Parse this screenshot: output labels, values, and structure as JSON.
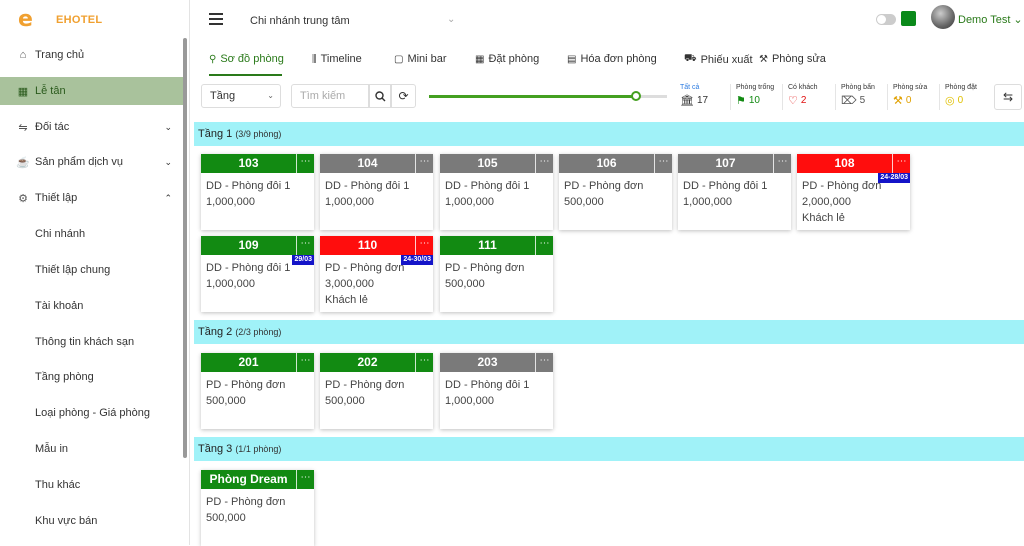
{
  "brand": {
    "name": "EHOTEL",
    "logo_glyph": "e",
    "accent": "#f0a030"
  },
  "menu": [
    {
      "label": "Trang chủ",
      "icon": "home-icon",
      "glyph": "⌂"
    },
    {
      "label": "Lễ tân",
      "icon": "grid-icon",
      "glyph": "▦",
      "active": true
    },
    {
      "label": "Đối tác",
      "icon": "swap-icon",
      "glyph": "⇋",
      "chevron": "⌄"
    },
    {
      "label": "Sản phẩm dịch vụ",
      "icon": "product-icon",
      "glyph": "☕",
      "chevron": "⌄"
    },
    {
      "label": "Thiết lập",
      "icon": "gear-icon",
      "glyph": "⚙",
      "chevron": "⌃"
    }
  ],
  "submenu": [
    "Chi nhánh",
    "Thiết lập chung",
    "Tài khoản",
    "Thông tin khách sạn",
    "Tầng phòng",
    "Loại phòng - Giá phòng",
    "Mẫu in",
    "Thu khác",
    "Khu vực bán"
  ],
  "topbar": {
    "branch": "Chi nhánh trung tâm",
    "branch_chevron": "⌄",
    "user": "Demo Test ⌄"
  },
  "tabs": [
    {
      "label": "Sơ đồ phòng",
      "icon": "diagram-icon",
      "glyph": "⚲",
      "active": true
    },
    {
      "label": "Timeline",
      "icon": "timeline-icon",
      "glyph": "⫼"
    },
    {
      "label": "Mini bar",
      "icon": "bag-icon",
      "glyph": "▢"
    },
    {
      "label": "Đặt phòng",
      "icon": "calendar-icon",
      "glyph": "▦"
    },
    {
      "label": "Hóa đơn phòng",
      "icon": "invoice-icon",
      "glyph": "▤"
    },
    {
      "label": "Phiếu xuất",
      "icon": "cart-icon",
      "glyph": "⛟"
    },
    {
      "label": "Phòng sửa",
      "icon": "hammer-icon",
      "glyph": "⚒"
    }
  ],
  "filters": {
    "floor_select": "Tầng",
    "floor_chevron": "⌄",
    "search_placeholder": "Tìm kiếm",
    "search_glyph": "⌕",
    "refresh_glyph": "⟳",
    "slider_value": 0.87,
    "swap_glyph": "⇆"
  },
  "stats": [
    {
      "label": "Tất cả",
      "value": "17",
      "glyph": "🏛",
      "color": "#333",
      "label_color": "#2a7ae0"
    },
    {
      "label": "Phòng trống",
      "value": "10",
      "glyph": "⚑",
      "color": "#128a12"
    },
    {
      "label": "Có khách",
      "value": "2",
      "glyph": "♡",
      "color": "#e01010"
    },
    {
      "label": "Phòng bẩn",
      "value": "5",
      "glyph": "⌦",
      "color": "#555"
    },
    {
      "label": "Phòng sửa",
      "value": "0",
      "glyph": "⚒",
      "color": "#e0a000"
    },
    {
      "label": "Phòng đặt",
      "value": "0",
      "glyph": "◎",
      "color": "#e0c000"
    }
  ],
  "floors": [
    {
      "name": "Tầng 1",
      "count": "(3/9 phòng)"
    },
    {
      "name": "Tầng 2",
      "count": "(2/3 phòng)"
    },
    {
      "name": "Tầng 3",
      "count": "(1/1 phòng)"
    }
  ],
  "rooms": [
    {
      "name": "103",
      "status": "green",
      "type": "DD - Phòng đôi 1",
      "price": "1,000,000"
    },
    {
      "name": "104",
      "status": "gray",
      "type": "DD - Phòng đôi 1",
      "price": "1,000,000"
    },
    {
      "name": "105",
      "status": "gray",
      "type": "DD - Phòng đôi 1",
      "price": "1,000,000"
    },
    {
      "name": "106",
      "status": "gray",
      "type": "PD - Phòng đơn",
      "price": "500,000"
    },
    {
      "name": "107",
      "status": "gray",
      "type": "DD - Phòng đôi 1",
      "price": "1,000,000"
    },
    {
      "name": "108",
      "status": "red",
      "type": "PD - Phòng đơn",
      "price": "2,000,000",
      "guest": "Khách lẻ",
      "badge": "24-28/03"
    },
    {
      "name": "109",
      "status": "green",
      "type": "DD - Phòng đôi 1",
      "price": "1,000,000",
      "badge": "29/03"
    },
    {
      "name": "110",
      "status": "red",
      "type": "PD - Phòng đơn",
      "price": "3,000,000",
      "guest": "Khách lẻ",
      "badge": "24-30/03"
    },
    {
      "name": "111",
      "status": "green",
      "type": "PD - Phòng đơn",
      "price": "500,000"
    },
    {
      "name": "201",
      "status": "green",
      "type": "PD - Phòng đơn",
      "price": "500,000"
    },
    {
      "name": "202",
      "status": "green",
      "type": "PD - Phòng đơn",
      "price": "500,000"
    },
    {
      "name": "203",
      "status": "gray",
      "type": "DD - Phòng đôi 1",
      "price": "1,000,000"
    },
    {
      "name": "Phòng Dream",
      "status": "green",
      "type": "PD - Phòng đơn",
      "price": "500,000"
    }
  ],
  "more_glyph": "⋯"
}
